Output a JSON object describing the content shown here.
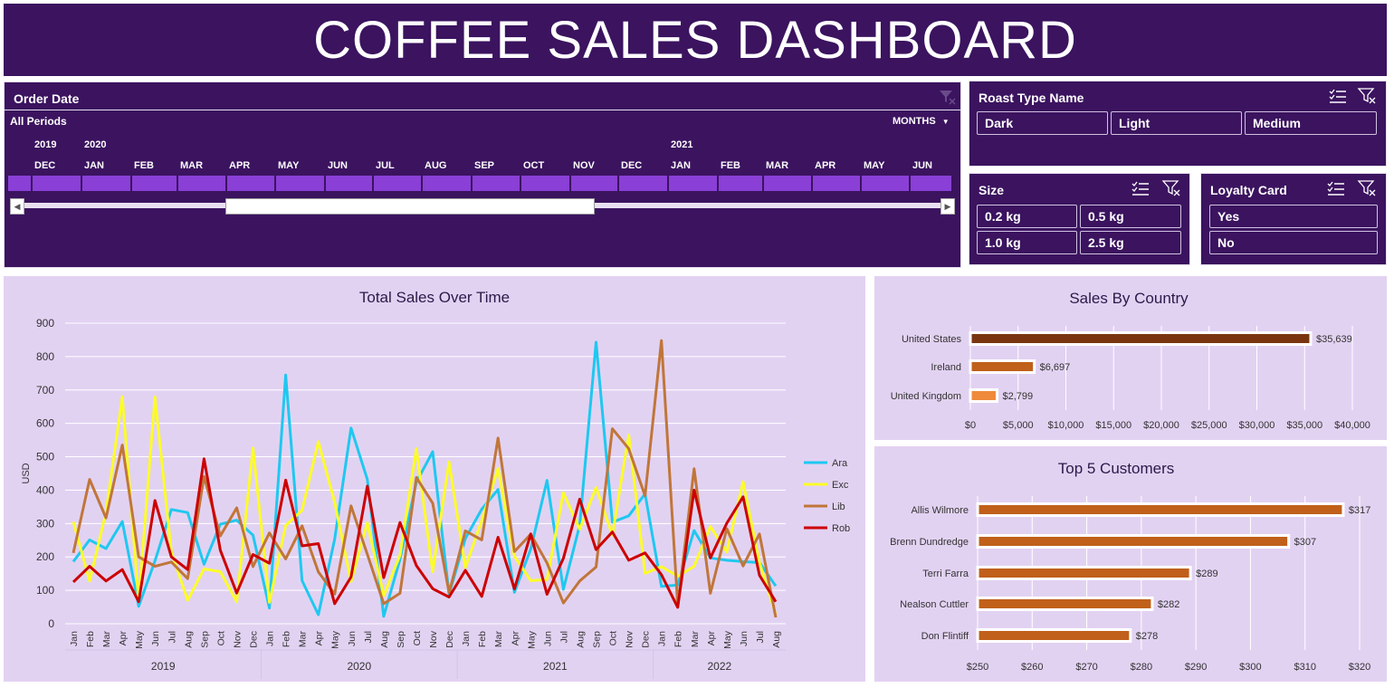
{
  "dashboard": {
    "title": "COFFEE SALES DASHBOARD"
  },
  "timeline": {
    "title": "Order Date",
    "period_label": "All Periods",
    "level_label": "MONTHS",
    "year_labels": [
      "2019",
      "2020",
      "2021"
    ],
    "month_labels": [
      "DEC",
      "JAN",
      "FEB",
      "MAR",
      "APR",
      "MAY",
      "JUN",
      "JUL",
      "AUG",
      "SEP",
      "OCT",
      "NOV",
      "DEC",
      "JAN",
      "FEB",
      "MAR",
      "APR",
      "MAY",
      "JUN"
    ]
  },
  "roast_slicer": {
    "title": "Roast Type Name",
    "items": [
      "Dark",
      "Light",
      "Medium"
    ]
  },
  "size_slicer": {
    "title": "Size",
    "items": [
      "0.2 kg",
      "0.5 kg",
      "1.0 kg",
      "2.5 kg"
    ]
  },
  "loyalty_slicer": {
    "title": "Loyalty Card",
    "items": [
      "Yes",
      "No"
    ]
  },
  "colors": {
    "panel": "#3b135f",
    "chart_bg": "#e2d2f2",
    "ara": "#1fc8f0",
    "exc": "#fcfc2a",
    "lib": "#c0763a",
    "rob": "#cc0000",
    "us_bar": "#7a3510",
    "ireland_bar": "#c0601a",
    "uk_bar": "#ef8a3c",
    "customer_bar": "#c0601a"
  },
  "chart_data": [
    {
      "type": "line",
      "title": "Total Sales Over Time",
      "ylabel": "USD",
      "ylim": [
        0,
        900
      ],
      "yticks": [
        0,
        100,
        200,
        300,
        400,
        500,
        600,
        700,
        800,
        900
      ],
      "grid": true,
      "legend": "right",
      "categories": [
        "Jan",
        "Feb",
        "Mar",
        "Apr",
        "May",
        "Jun",
        "Jul",
        "Aug",
        "Sep",
        "Oct",
        "Nov",
        "Dec",
        "Jan",
        "Feb",
        "Mar",
        "Apr",
        "May",
        "Jun",
        "Jul",
        "Aug",
        "Sep",
        "Oct",
        "Nov",
        "Dec",
        "Jan",
        "Feb",
        "Mar",
        "Apr",
        "May",
        "Jun",
        "Jul",
        "Aug",
        "Sep",
        "Oct",
        "Nov",
        "Dec",
        "Jan",
        "Feb",
        "Mar",
        "Apr",
        "May",
        "Jun",
        "Jul",
        "Aug"
      ],
      "year_groups": [
        {
          "label": "2019",
          "start": 0,
          "end": 11
        },
        {
          "label": "2020",
          "start": 12,
          "end": 23
        },
        {
          "label": "2021",
          "start": 24,
          "end": 35
        },
        {
          "label": "2022",
          "start": 36,
          "end": 43
        }
      ],
      "series": [
        {
          "name": "Ara",
          "values": [
            186,
            251,
            225,
            306,
            52,
            188,
            342,
            333,
            178,
            298,
            310,
            265,
            47,
            745,
            129,
            27,
            253,
            586,
            432,
            22,
            193,
            424,
            515,
            89,
            255,
            343,
            402,
            94,
            223,
            429,
            103,
            295,
            843,
            304,
            323,
            389,
            112,
            116,
            279,
            197,
            190,
            186,
            183,
            113
          ]
        },
        {
          "name": "Exc",
          "values": [
            305,
            128,
            334,
            680,
            68,
            679,
            215,
            70,
            164,
            156,
            66,
            526,
            64,
            294,
            340,
            545,
            364,
            126,
            302,
            84,
            205,
            524,
            156,
            485,
            168,
            309,
            465,
            202,
            129,
            132,
            392,
            283,
            408,
            265,
            565,
            151,
            171,
            142,
            172,
            291,
            215,
            425,
            183,
            28
          ]
        },
        {
          "name": "Lib",
          "values": [
            212,
            432,
            317,
            535,
            200,
            172,
            185,
            135,
            441,
            263,
            347,
            171,
            272,
            194,
            293,
            155,
            89,
            353,
            208,
            60,
            91,
            438,
            361,
            93,
            278,
            251,
            556,
            216,
            268,
            182,
            62,
            128,
            170,
            584,
            524,
            383,
            848,
            54,
            464,
            91,
            285,
            173,
            269,
            19
          ]
        },
        {
          "name": "Rob",
          "values": [
            125,
            172,
            128,
            162,
            66,
            369,
            200,
            162,
            494,
            220,
            92,
            207,
            181,
            430,
            233,
            240,
            60,
            140,
            412,
            138,
            303,
            174,
            105,
            80,
            160,
            82,
            259,
            104,
            269,
            88,
            196,
            373,
            222,
            275,
            190,
            212,
            147,
            49,
            400,
            197,
            301,
            380,
            145,
            66
          ]
        }
      ]
    },
    {
      "type": "bar",
      "orientation": "horizontal",
      "title": "Sales By Country",
      "categories": [
        "United States",
        "Ireland",
        "United Kingdom"
      ],
      "values": [
        35639,
        6697,
        2799
      ],
      "data_labels": [
        "$35,639",
        "$6,697",
        "$2,799"
      ],
      "xlim": [
        0,
        40000
      ],
      "xticks": [
        "$0",
        "$5,000",
        "$10,000",
        "$15,000",
        "$20,000",
        "$25,000",
        "$30,000",
        "$35,000",
        "$40,000"
      ],
      "grid": true
    },
    {
      "type": "bar",
      "orientation": "horizontal",
      "title": "Top 5 Customers",
      "categories": [
        "Allis Wilmore",
        "Brenn Dundredge",
        "Terri Farra",
        "Nealson Cuttler",
        "Don Flintiff"
      ],
      "values": [
        317,
        307,
        289,
        282,
        278
      ],
      "data_labels": [
        "$317",
        "$307",
        "$289",
        "$282",
        "$278"
      ],
      "xlim": [
        250,
        320
      ],
      "xticks": [
        "$250",
        "$260",
        "$270",
        "$280",
        "$290",
        "$300",
        "$310",
        "$320"
      ],
      "grid": true
    }
  ]
}
